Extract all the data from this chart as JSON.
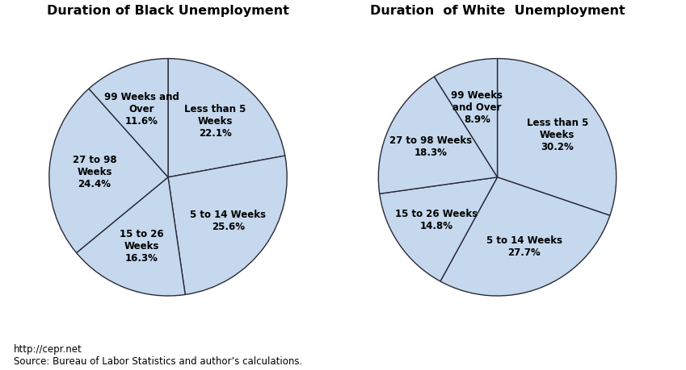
{
  "black_labels": [
    "Less than 5\nWeeks\n22.1%",
    "5 to 14 Weeks\n25.6%",
    "15 to 26\nWeeks\n16.3%",
    "27 to 98\nWeeks\n24.4%",
    "99 Weeks and\nOver\n11.6%"
  ],
  "black_values": [
    22.1,
    25.6,
    16.3,
    24.4,
    11.6
  ],
  "white_labels": [
    "Less than 5\nWeeks\n30.2%",
    "5 to 14 Weeks\n27.7%",
    "15 to 26 Weeks\n14.8%",
    "27 to 98 Weeks\n18.3%",
    "99 Weeks\nand Over\n8.9%"
  ],
  "white_values": [
    30.2,
    27.7,
    14.8,
    18.3,
    8.9
  ],
  "pie_color": "#c5d8ed",
  "edge_color": "#2a2a3a",
  "title_black": "Duration of Black Unemployment",
  "title_white": "Duration  of White  Unemployment",
  "title_fontsize": 11.5,
  "label_fontsize": 8.5,
  "source_text": "http://cepr.net\nSource: Bureau of Labor Statistics and author’s calculations.",
  "source_fontsize": 8.5,
  "background_color": "#ffffff",
  "startangle_black": 90,
  "startangle_white": 90
}
